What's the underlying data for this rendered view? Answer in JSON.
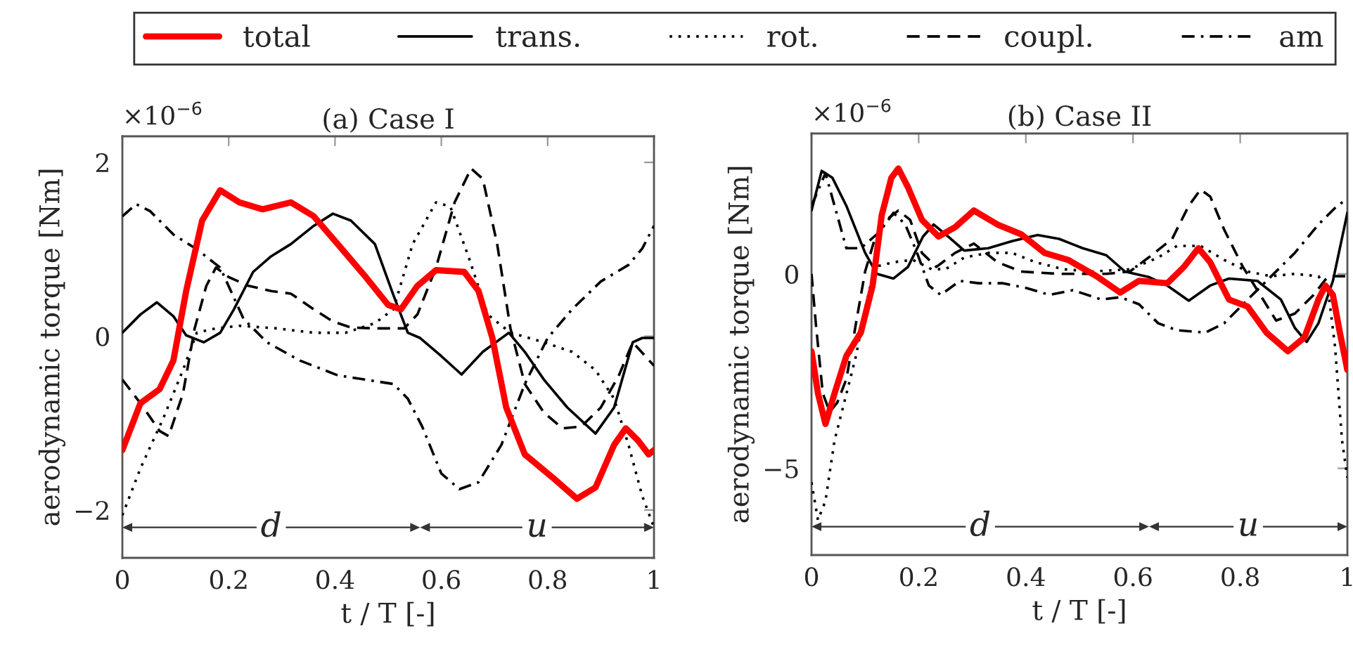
{
  "chart_data": [
    {
      "type": "line",
      "title": "(a) Case I",
      "xlabel": "t / T [-]",
      "ylabel": "aerodynamic torque [Nm]",
      "legend": "top",
      "xlim": [
        0,
        1
      ],
      "xticks": [
        0,
        0.2,
        0.4,
        0.6,
        0.8,
        1
      ],
      "ylim": [
        -2.55,
        2.3
      ],
      "yticks": [
        -2,
        0,
        2
      ],
      "annotations": [
        "×10$^{−6}$",
        {
          "text": "d",
          "x": 0.28,
          "y": -2.2
        },
        {
          "text": "u",
          "x": 0.78,
          "y": -2.2
        }
      ],
      "series": [
        {
          "name": "total",
          "color": "#ff0000",
          "line_style": "solid",
          "x": [
            0,
            0.034,
            0.07,
            0.096,
            0.12,
            0.15,
            0.184,
            0.22,
            0.264,
            0.317,
            0.36,
            0.405,
            0.458,
            0.5,
            0.524,
            0.555,
            0.59,
            0.643,
            0.67,
            0.696,
            0.722,
            0.757,
            0.81,
            0.855,
            0.89,
            0.925,
            0.947,
            0.97,
            0.99,
            1.0
          ],
          "values": [
            -1.31,
            -0.77,
            -0.61,
            -0.28,
            0.52,
            1.33,
            1.68,
            1.54,
            1.46,
            1.54,
            1.38,
            1.06,
            0.68,
            0.36,
            0.31,
            0.58,
            0.76,
            0.74,
            0.52,
            -0.02,
            -0.82,
            -1.36,
            -1.63,
            -1.87,
            -1.74,
            -1.25,
            -1.06,
            -1.2,
            -1.36,
            -1.31
          ]
        },
        {
          "name": "trans.",
          "color": "#000000",
          "line_style": "solid",
          "x": [
            0,
            0.034,
            0.065,
            0.096,
            0.12,
            0.153,
            0.184,
            0.21,
            0.246,
            0.28,
            0.317,
            0.36,
            0.396,
            0.43,
            0.475,
            0.51,
            0.537,
            0.56,
            0.6,
            0.638,
            0.678,
            0.727,
            0.757,
            0.793,
            0.837,
            0.89,
            0.925,
            0.96,
            0.978,
            1.0
          ],
          "values": [
            0.04,
            0.25,
            0.39,
            0.23,
            0.01,
            -0.07,
            0.04,
            0.31,
            0.74,
            0.92,
            1.06,
            1.27,
            1.41,
            1.33,
            1.06,
            0.47,
            0.04,
            -0.02,
            -0.23,
            -0.44,
            -0.18,
            0.04,
            -0.18,
            -0.5,
            -0.82,
            -1.12,
            -0.82,
            -0.07,
            -0.02,
            -0.02
          ]
        },
        {
          "name": "rot.",
          "color": "#000000",
          "line_style": "dotted",
          "x": [
            0,
            0.034,
            0.078,
            0.114,
            0.14,
            0.176,
            0.22,
            0.29,
            0.36,
            0.42,
            0.475,
            0.51,
            0.546,
            0.59,
            0.617,
            0.652,
            0.687,
            0.73,
            0.793,
            0.846,
            0.89,
            0.925,
            0.952,
            0.978,
            1.0
          ],
          "values": [
            -2.06,
            -1.52,
            -0.93,
            -0.39,
            0.04,
            0.09,
            0.12,
            0.09,
            0.04,
            0.04,
            0.15,
            0.31,
            1.06,
            1.54,
            1.49,
            0.9,
            0.25,
            0.04,
            -0.07,
            -0.18,
            -0.39,
            -0.72,
            -1.25,
            -1.84,
            -2.2
          ]
        },
        {
          "name": "coupl.",
          "color": "#000000",
          "line_style": "dashed",
          "x": [
            0,
            0.034,
            0.07,
            0.087,
            0.114,
            0.136,
            0.158,
            0.176,
            0.2,
            0.237,
            0.28,
            0.317,
            0.36,
            0.396,
            0.43,
            0.475,
            0.53,
            0.555,
            0.59,
            0.625,
            0.656,
            0.678,
            0.705,
            0.73,
            0.757,
            0.793,
            0.828,
            0.863,
            0.9,
            0.934,
            0.96,
            1.0
          ],
          "values": [
            -0.5,
            -0.77,
            -1.09,
            -1.15,
            -0.66,
            0.09,
            0.58,
            0.79,
            0.68,
            0.58,
            0.52,
            0.49,
            0.31,
            0.17,
            0.1,
            0.09,
            0.09,
            0.25,
            0.79,
            1.54,
            1.93,
            1.81,
            1.06,
            0.09,
            -0.55,
            -0.88,
            -1.06,
            -1.04,
            -0.82,
            -0.45,
            -0.07,
            -0.34
          ]
        },
        {
          "name": "am",
          "color": "#000000",
          "line_style": "dashdot",
          "x": [
            0,
            0.026,
            0.052,
            0.096,
            0.14,
            0.184,
            0.228,
            0.272,
            0.334,
            0.405,
            0.458,
            0.51,
            0.537,
            0.564,
            0.6,
            0.634,
            0.67,
            0.713,
            0.757,
            0.8,
            0.846,
            0.9,
            0.952,
            0.978,
            1.0
          ],
          "values": [
            1.38,
            1.52,
            1.44,
            1.17,
            1.0,
            0.79,
            0.2,
            -0.07,
            -0.28,
            -0.45,
            -0.5,
            -0.55,
            -0.72,
            -1.04,
            -1.58,
            -1.76,
            -1.68,
            -1.25,
            -0.55,
            -0.02,
            0.31,
            0.63,
            0.82,
            1.01,
            1.27
          ]
        }
      ]
    },
    {
      "type": "line",
      "title": "(b) Case II",
      "xlabel": "t / T [-]",
      "ylabel": "aerodynamic torque [Nm]",
      "xlim": [
        0,
        1
      ],
      "xticks": [
        0,
        0.2,
        0.4,
        0.6,
        0.8,
        1
      ],
      "ylim": [
        -7.23,
        3.61
      ],
      "yticks": [
        -5,
        0
      ],
      "annotations": [
        "×10$^{−6}$",
        {
          "text": "d",
          "x": 0.315,
          "y": -6.5
        },
        {
          "text": "u",
          "x": 0.815,
          "y": -6.5
        }
      ],
      "series": [
        {
          "color": "#ff0000",
          "line_style": "solid",
          "x": [
            0,
            0.012,
            0.026,
            0.043,
            0.065,
            0.092,
            0.114,
            0.131,
            0.149,
            0.162,
            0.18,
            0.206,
            0.237,
            0.268,
            0.303,
            0.347,
            0.391,
            0.435,
            0.479,
            0.532,
            0.576,
            0.611,
            0.664,
            0.695,
            0.722,
            0.744,
            0.779,
            0.814,
            0.849,
            0.889,
            0.92,
            0.946,
            0.959,
            0.973,
            0.986,
            1.0
          ],
          "values": [
            -1.99,
            -3.07,
            -3.86,
            -3.07,
            -2.11,
            -1.51,
            -0.3,
            1.51,
            2.47,
            2.71,
            2.23,
            1.39,
            0.96,
            1.2,
            1.63,
            1.27,
            1.02,
            0.54,
            0.36,
            -0.06,
            -0.48,
            -0.18,
            -0.24,
            0.18,
            0.66,
            0.3,
            -0.66,
            -0.84,
            -1.51,
            -1.99,
            -1.63,
            -0.66,
            -0.3,
            -0.54,
            -1.51,
            -2.47
          ]
        },
        {
          "color": "#000000",
          "line_style": "solid",
          "x": [
            0,
            0.019,
            0.039,
            0.065,
            0.1,
            0.122,
            0.153,
            0.18,
            0.208,
            0.228,
            0.25,
            0.285,
            0.33,
            0.374,
            0.422,
            0.462,
            0.506,
            0.55,
            0.585,
            0.629,
            0.664,
            0.704,
            0.744,
            0.779,
            0.832,
            0.876,
            0.902,
            0.924,
            0.946,
            0.973,
            1.0
          ],
          "values": [
            1.63,
            2.65,
            2.47,
            1.75,
            0.54,
            0,
            -0.12,
            0.18,
            0.96,
            1.27,
            1.02,
            0.6,
            0.66,
            0.84,
            1.0,
            0.9,
            0.66,
            0.48,
            0.06,
            -0.08,
            -0.3,
            -0.69,
            -0.3,
            -0.12,
            -0.18,
            -0.66,
            -1.39,
            -1.75,
            -1.27,
            -0.18,
            1.57
          ]
        },
        {
          "color": "#000000",
          "line_style": "dotted",
          "x": [
            0,
            0.012,
            0.026,
            0.043,
            0.061,
            0.083,
            0.1,
            0.118,
            0.153,
            0.189,
            0.224,
            0.25,
            0.285,
            0.33,
            0.374,
            0.418,
            0.47,
            0.523,
            0.594,
            0.647,
            0.682,
            0.726,
            0.77,
            0.814,
            0.858,
            0.902,
            0.946,
            0.964,
            0.977,
            0.99,
            1.0
          ],
          "values": [
            -5.36,
            -6.33,
            -5.84,
            -4.28,
            -3.31,
            -2.11,
            -0.9,
            0.18,
            0.3,
            0.36,
            0.12,
            0.12,
            0.42,
            0.54,
            0.54,
            0.3,
            0.12,
            0.06,
            0.12,
            0.42,
            0.72,
            0.72,
            0.36,
            0.06,
            -0.06,
            0,
            -0.06,
            -0.42,
            -1.87,
            -4.28,
            -5.24
          ]
        },
        {
          "color": "#000000",
          "line_style": "dashed",
          "x": [
            0,
            0.008,
            0.021,
            0.034,
            0.048,
            0.065,
            0.083,
            0.1,
            0.118,
            0.14,
            0.162,
            0.184,
            0.206,
            0.233,
            0.268,
            0.303,
            0.347,
            0.391,
            0.462,
            0.55,
            0.594,
            0.629,
            0.673,
            0.704,
            0.726,
            0.744,
            0.77,
            0.805,
            0.832,
            0.867,
            0.902,
            0.937,
            0.964,
            1.0
          ],
          "values": [
            0,
            -1.27,
            -3.07,
            -3.55,
            -3.31,
            -2.71,
            -1.27,
            0.06,
            0.9,
            1.39,
            1.63,
            1.39,
            0.54,
            0.18,
            0.54,
            0.78,
            0.3,
            0.06,
            0,
            0,
            0.06,
            0.42,
            0.9,
            1.75,
            2.17,
            1.99,
            1.14,
            0.18,
            -0.42,
            -1.2,
            -1.02,
            -0.54,
            -0.06,
            -0.06
          ]
        },
        {
          "color": "#000000",
          "line_style": "dashdot",
          "x": [
            0,
            0.026,
            0.043,
            0.065,
            0.092,
            0.127,
            0.153,
            0.175,
            0.197,
            0.219,
            0.241,
            0.277,
            0.312,
            0.356,
            0.4,
            0.444,
            0.488,
            0.541,
            0.576,
            0.611,
            0.647,
            0.682,
            0.735,
            0.77,
            0.814,
            0.858,
            0.902,
            0.946,
            0.981,
            1.0
          ],
          "values": [
            1.75,
            2.59,
            1.75,
            0.66,
            0.66,
            1.08,
            1.57,
            1.27,
            0.54,
            -0.3,
            -0.54,
            -0.18,
            -0.24,
            -0.24,
            -0.36,
            -0.54,
            -0.42,
            -0.66,
            -0.6,
            -0.78,
            -1.27,
            -1.45,
            -1.51,
            -1.27,
            -0.66,
            -0.06,
            0.54,
            1.27,
            1.75,
            1.93
          ]
        }
      ]
    }
  ]
}
